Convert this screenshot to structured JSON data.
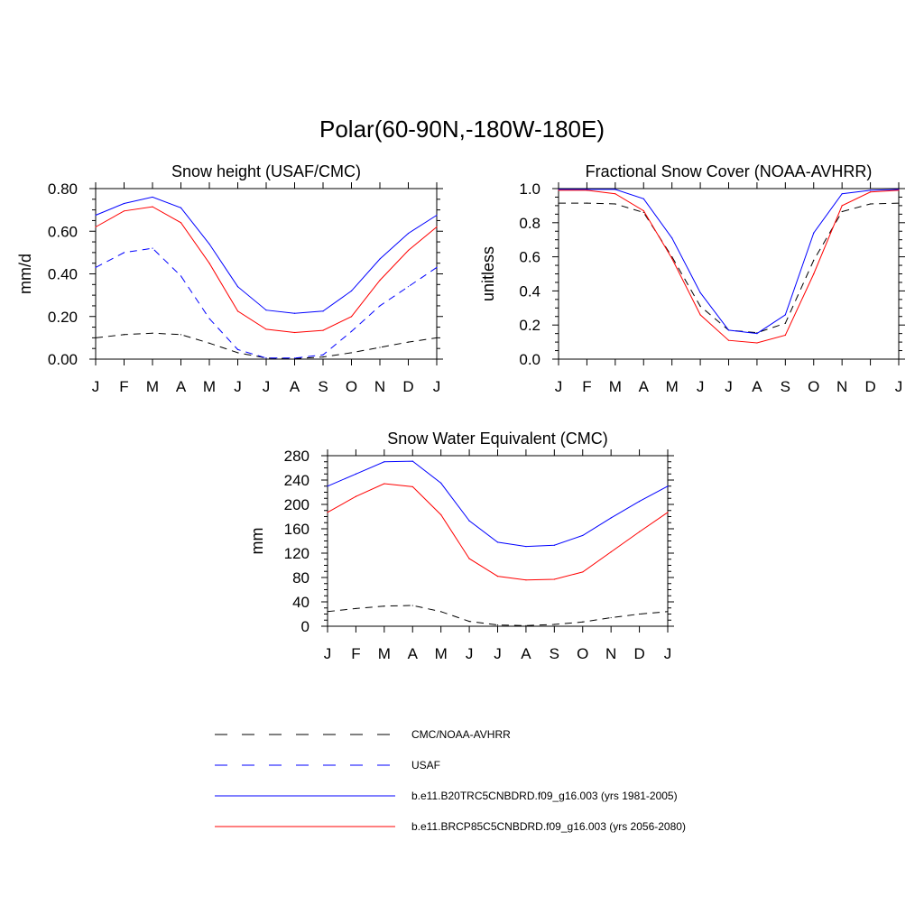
{
  "title": "Polar(60-90N,-180W-180E)",
  "colors": {
    "obs": "#000000",
    "usaf": "#0000ff",
    "model1": "#0000ff",
    "model2": "#ff0000"
  },
  "legend": [
    {
      "label": "CMC/NOAA-AVHRR",
      "color": "#000000",
      "dashed": true
    },
    {
      "label": "USAF",
      "color": "#0000ff",
      "dashed": true
    },
    {
      "label": "b.e11.B20TRC5CNBDRD.f09_g16.003 (yrs 1981-2005)",
      "color": "#0000ff",
      "dashed": false
    },
    {
      "label": "b.e11.BRCP85C5CNBDRD.f09_g16.003 (yrs 2056-2080)",
      "color": "#ff0000",
      "dashed": false
    }
  ],
  "chart_data": [
    {
      "type": "line",
      "title": "Snow height (USAF/CMC)",
      "xlabel": "",
      "ylabel": "mm/d",
      "categories": [
        "J",
        "F",
        "M",
        "A",
        "M",
        "J",
        "J",
        "A",
        "S",
        "O",
        "N",
        "D",
        "J"
      ],
      "ylim": [
        0,
        0.8
      ],
      "yticks": [
        "0.00",
        "0.20",
        "0.40",
        "0.60",
        "0.80"
      ],
      "series": [
        {
          "name": "CMC/NOAA-AVHRR",
          "color": "#000000",
          "dashed": true,
          "values": [
            0.1,
            0.115,
            0.122,
            0.115,
            0.075,
            0.03,
            0.005,
            0.002,
            0.01,
            0.03,
            0.055,
            0.08,
            0.1
          ]
        },
        {
          "name": "USAF",
          "color": "#0000ff",
          "dashed": true,
          "values": [
            0.43,
            0.5,
            0.52,
            0.39,
            0.19,
            0.045,
            0.005,
            0.005,
            0.02,
            0.13,
            0.25,
            0.34,
            0.43
          ]
        },
        {
          "name": "b.e11.B20TRC5CNBDRD.f09_g16.003 (yrs 1981-2005)",
          "color": "#0000ff",
          "dashed": false,
          "values": [
            0.675,
            0.73,
            0.76,
            0.71,
            0.54,
            0.34,
            0.23,
            0.215,
            0.225,
            0.32,
            0.47,
            0.59,
            0.675
          ]
        },
        {
          "name": "b.e11.BRCP85C5CNBDRD.f09_g16.003 (yrs 2056-2080)",
          "color": "#ff0000",
          "dashed": false,
          "values": [
            0.62,
            0.695,
            0.715,
            0.64,
            0.45,
            0.225,
            0.14,
            0.125,
            0.135,
            0.2,
            0.37,
            0.51,
            0.62
          ]
        }
      ]
    },
    {
      "type": "line",
      "title": "Fractional Snow Cover (NOAA-AVHRR)",
      "xlabel": "",
      "ylabel": "unitless",
      "categories": [
        "J",
        "F",
        "M",
        "A",
        "M",
        "J",
        "J",
        "A",
        "S",
        "O",
        "N",
        "D",
        "J"
      ],
      "ylim": [
        0,
        1.0
      ],
      "yticks": [
        "0.0",
        "0.2",
        "0.4",
        "0.6",
        "0.8",
        "1.0"
      ],
      "series": [
        {
          "name": "CMC/NOAA-AVHRR",
          "color": "#000000",
          "dashed": true,
          "values": [
            0.915,
            0.915,
            0.91,
            0.86,
            0.6,
            0.31,
            0.17,
            0.155,
            0.21,
            0.58,
            0.865,
            0.91,
            0.915
          ]
        },
        {
          "name": "b.e11.B20TRC5CNBDRD.f09_g16.003 (yrs 1981-2005)",
          "color": "#0000ff",
          "dashed": false,
          "values": [
            0.995,
            0.995,
            0.995,
            0.94,
            0.71,
            0.39,
            0.17,
            0.15,
            0.26,
            0.74,
            0.97,
            0.99,
            0.995
          ]
        },
        {
          "name": "b.e11.BRCP85C5CNBDRD.f09_g16.003 (yrs 2056-2080)",
          "color": "#ff0000",
          "dashed": false,
          "values": [
            0.99,
            0.99,
            0.97,
            0.87,
            0.59,
            0.26,
            0.11,
            0.095,
            0.14,
            0.5,
            0.9,
            0.98,
            0.99
          ]
        }
      ]
    },
    {
      "type": "line",
      "title": "Snow Water Equivalent (CMC)",
      "xlabel": "",
      "ylabel": "mm",
      "categories": [
        "J",
        "F",
        "M",
        "A",
        "M",
        "J",
        "J",
        "A",
        "S",
        "O",
        "N",
        "D",
        "J"
      ],
      "ylim": [
        0,
        280
      ],
      "yticks": [
        "0",
        "40",
        "80",
        "120",
        "160",
        "200",
        "240",
        "280"
      ],
      "series": [
        {
          "name": "CMC/NOAA-AVHRR",
          "color": "#000000",
          "dashed": true,
          "values": [
            24,
            29,
            33,
            34,
            24,
            8,
            2,
            1,
            3,
            7,
            14,
            20,
            24
          ]
        },
        {
          "name": "b.e11.B20TRC5CNBDRD.f09_g16.003 (yrs 1981-2005)",
          "color": "#0000ff",
          "dashed": false,
          "values": [
            230,
            250,
            270,
            271,
            235,
            173,
            138,
            131,
            133,
            149,
            178,
            205,
            230
          ]
        },
        {
          "name": "b.e11.BRCP85C5CNBDRD.f09_g16.003 (yrs 2056-2080)",
          "color": "#ff0000",
          "dashed": false,
          "values": [
            187,
            213,
            234,
            229,
            183,
            111,
            82,
            76,
            77,
            89,
            122,
            155,
            187
          ]
        }
      ]
    }
  ]
}
